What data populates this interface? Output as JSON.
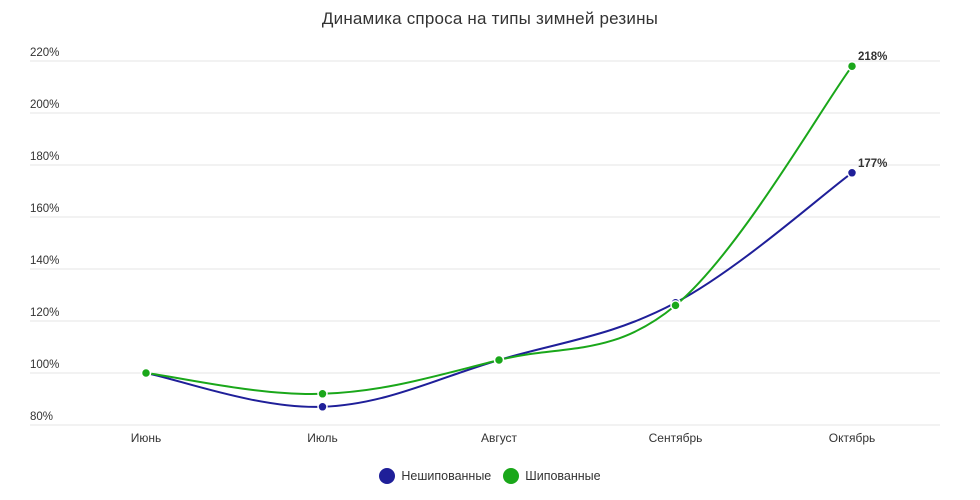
{
  "chart_data": {
    "type": "line",
    "title": "Динамика спроса на типы зимней резины",
    "categories": [
      "Июнь",
      "Июль",
      "Август",
      "Сентябрь",
      "Октябрь"
    ],
    "y_ticks": [
      "80%",
      "100%",
      "120%",
      "140%",
      "160%",
      "180%",
      "200%",
      "220%"
    ],
    "ylim": [
      80,
      220
    ],
    "grid": true,
    "legend_position": "bottom",
    "series": [
      {
        "name": "Нешипованные",
        "color": "#1f1f99",
        "values": [
          100,
          87,
          105,
          127,
          177
        ],
        "last_label": "177%"
      },
      {
        "name": "Шипованные",
        "color": "#1aa71a",
        "values": [
          100,
          92,
          105,
          126,
          218
        ],
        "last_label": "218%"
      }
    ]
  }
}
